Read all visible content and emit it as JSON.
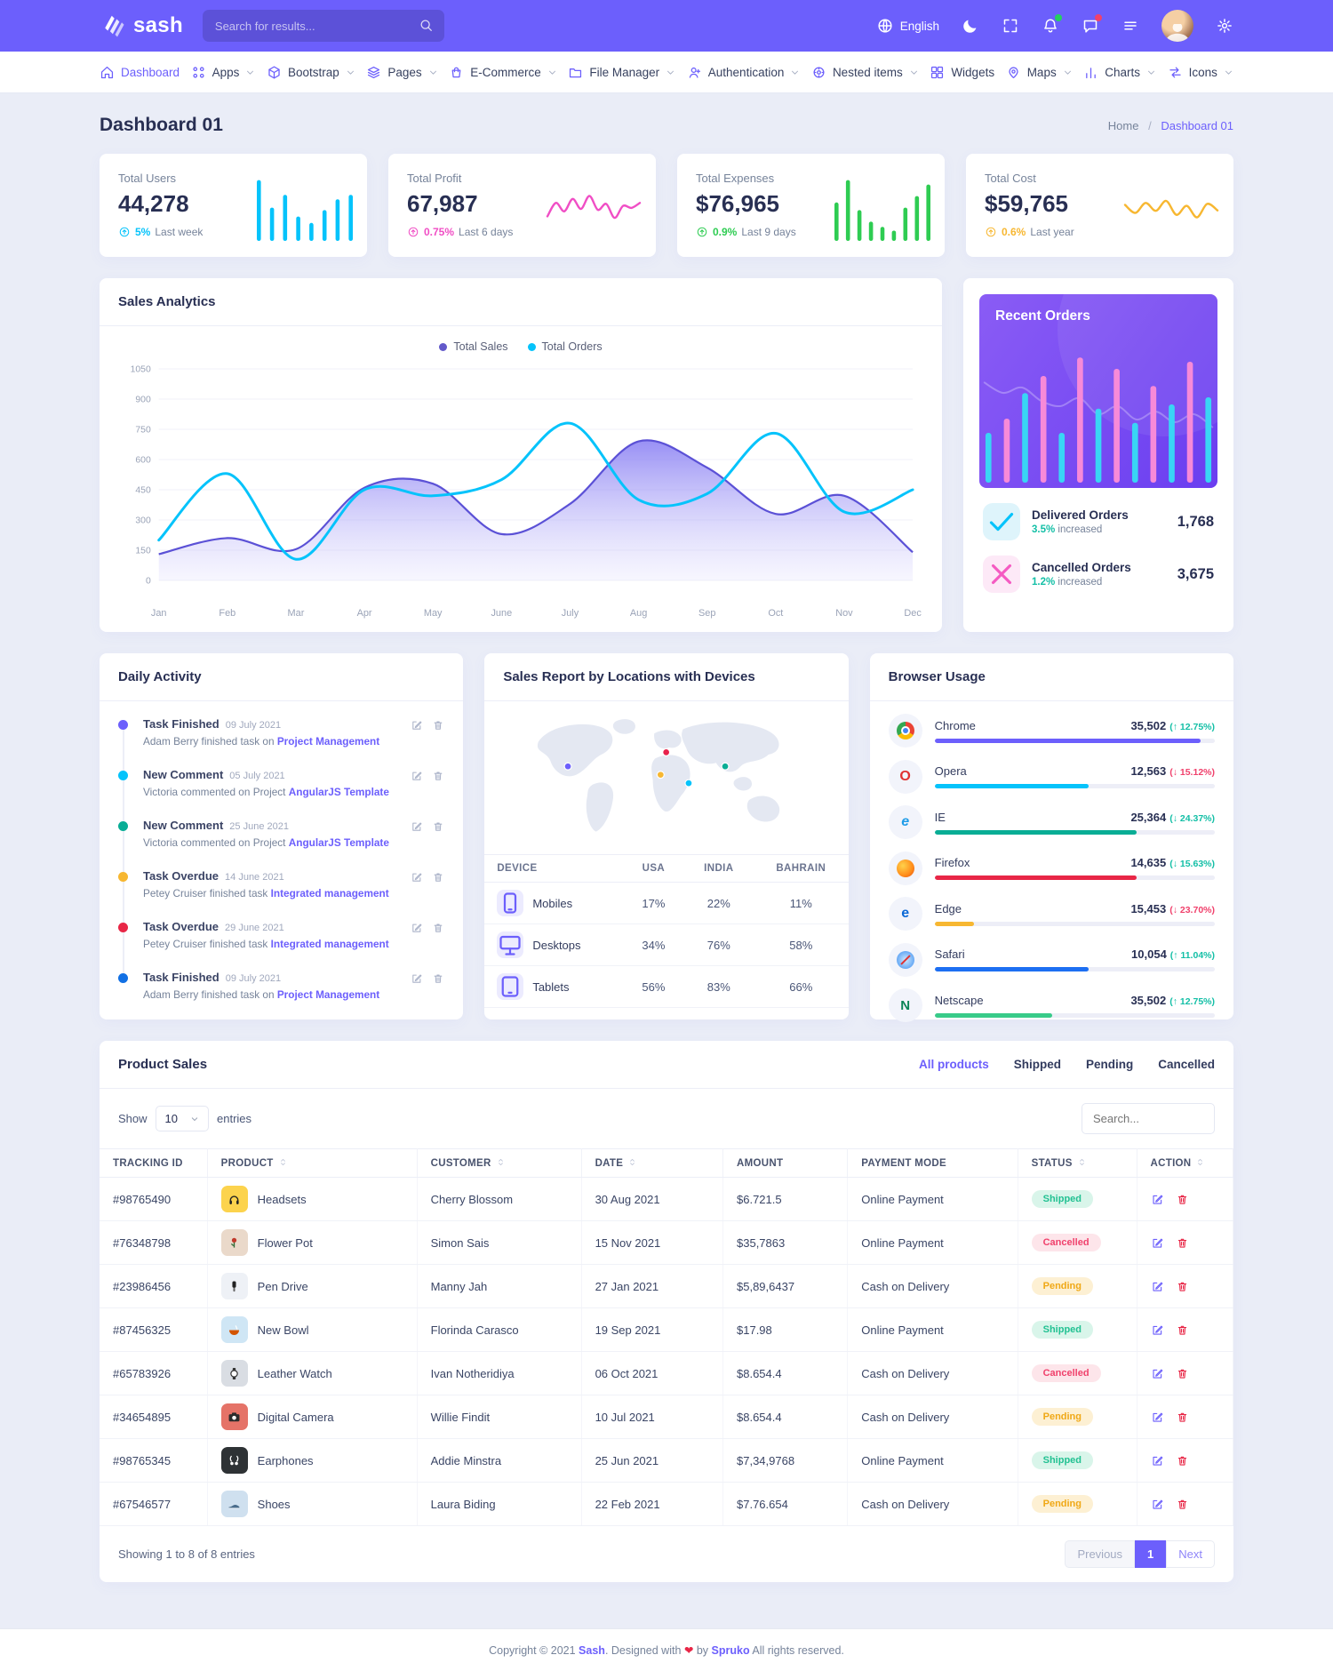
{
  "header": {
    "brand": "sash",
    "search": {
      "placeholder": "Search for results..."
    },
    "language": "English",
    "action_icons": [
      {
        "icon": "globe-icon",
        "label": "English"
      },
      {
        "icon": "moon-icon"
      },
      {
        "icon": "fullscreen-icon"
      },
      {
        "icon": "bell-icon",
        "badge": "#23d160"
      },
      {
        "icon": "chat-icon",
        "badge": "#f0416c"
      },
      {
        "icon": "menu-icon"
      },
      {
        "icon": "avatar"
      },
      {
        "icon": "gear-icon"
      }
    ]
  },
  "nav": {
    "items": [
      {
        "label": "Dashboard",
        "icon": "home-icon",
        "active": true,
        "caret": false
      },
      {
        "label": "Apps",
        "icon": "apps-icon",
        "caret": true
      },
      {
        "label": "Bootstrap",
        "icon": "bootstrap-icon",
        "caret": true
      },
      {
        "label": "Pages",
        "icon": "pages-icon",
        "caret": true
      },
      {
        "label": "E-Commerce",
        "icon": "ecommerce-icon",
        "caret": true
      },
      {
        "label": "File Manager",
        "icon": "folder-icon",
        "caret": true
      },
      {
        "label": "Authentication",
        "icon": "user-icon",
        "caret": true
      },
      {
        "label": "Nested items",
        "icon": "nested-icon",
        "caret": true
      },
      {
        "label": "Widgets",
        "icon": "widgets-icon",
        "caret": false
      },
      {
        "label": "Maps",
        "icon": "map-pin-icon",
        "caret": true
      },
      {
        "label": "Charts",
        "icon": "charts-icon",
        "caret": true
      },
      {
        "label": "Icons",
        "icon": "icons-icon",
        "caret": true
      }
    ]
  },
  "page": {
    "title": "Dashboard 01",
    "breadcrumb": {
      "home": "Home",
      "current": "Dashboard 01"
    }
  },
  "stats": [
    {
      "label": "Total Users",
      "value": "44,278",
      "change": "5%",
      "period": "Last week",
      "color": "#05c3fb"
    },
    {
      "label": "Total Profit",
      "value": "67,987",
      "change": "0.75%",
      "period": "Last 6 days",
      "color": "#f04ec5"
    },
    {
      "label": "Total Expenses",
      "value": "$76,965",
      "change": "0.9%",
      "period": "Last 9 days",
      "color": "#2ecc52"
    },
    {
      "label": "Total Cost",
      "value": "$59,765",
      "change": "0.6%",
      "period": "Last year",
      "color": "#f7b731"
    }
  ],
  "chart_data": [
    {
      "id": "sales-analytics",
      "type": "area",
      "title": "Sales Analytics",
      "categories": [
        "Jan",
        "Feb",
        "Mar",
        "Apr",
        "May",
        "June",
        "July",
        "Aug",
        "Sep",
        "Oct",
        "Nov",
        "Dec"
      ],
      "yticks": [
        0,
        150,
        300,
        450,
        600,
        750,
        900,
        1050
      ],
      "ylim": [
        0,
        1050
      ],
      "grid": true,
      "legend_position": "top",
      "series": [
        {
          "name": "Total Sales",
          "type": "area",
          "color": "#6259ca",
          "values": [
            130,
            210,
            155,
            460,
            480,
            230,
            380,
            690,
            560,
            330,
            420,
            140
          ]
        },
        {
          "name": "Total Orders",
          "type": "line",
          "color": "#05c3fb",
          "values": [
            200,
            530,
            105,
            450,
            420,
            500,
            780,
            400,
            430,
            730,
            340,
            450
          ]
        }
      ]
    },
    {
      "id": "recent-orders-mini",
      "type": "bar",
      "bar_colors": [
        "#39d5f5",
        "#f78ad8"
      ],
      "values": [
        35,
        45,
        63,
        75,
        35,
        88,
        52,
        80,
        42,
        68,
        55,
        85,
        60
      ],
      "overlay_line": [
        70,
        62,
        66,
        56,
        52,
        58,
        46,
        52,
        42,
        48,
        40,
        46,
        36
      ]
    },
    {
      "id": "stat-sparklines",
      "type": "sparklines",
      "items": [
        {
          "type": "bar",
          "color": "#05c3fb",
          "values": [
            95,
            52,
            72,
            38,
            28,
            48,
            65,
            72
          ]
        },
        {
          "type": "line",
          "color": "#f04ec5",
          "values": [
            35,
            62,
            45,
            70,
            50,
            76,
            48,
            60,
            32,
            56,
            52,
            62
          ]
        },
        {
          "type": "bar",
          "color": "#2ecc52",
          "values": [
            60,
            95,
            48,
            30,
            22,
            16,
            52,
            70,
            88
          ]
        },
        {
          "type": "line",
          "color": "#f7b731",
          "values": [
            58,
            42,
            62,
            46,
            66,
            38,
            56,
            33,
            60,
            47
          ]
        }
      ]
    }
  ],
  "recent_orders": {
    "title": "Recent Orders",
    "items": [
      {
        "label": "Delivered Orders",
        "change": "3.5%",
        "change_text": "increased",
        "value": "1,768",
        "icon": "check-icon",
        "icon_color": "#05c3fb",
        "icon_bg": "#def4fb",
        "change_color": "#13bfa6"
      },
      {
        "label": "Cancelled Orders",
        "change": "1.2%",
        "change_text": "increased",
        "value": "3,675",
        "icon": "x-icon",
        "icon_color": "#f55bc2",
        "icon_bg": "#fde9f7",
        "change_color": "#13bfa6"
      }
    ]
  },
  "daily_activity": {
    "title": "Daily Activity",
    "items": [
      {
        "dot": "#6c5ffc",
        "title": "Task Finished",
        "date": "09 July 2021",
        "text": "Adam Berry finished task on ",
        "link": "Project Management"
      },
      {
        "dot": "#05c3fb",
        "title": "New Comment",
        "date": "05 July 2021",
        "text": "Victoria commented on Project ",
        "link": "AngularJS Template"
      },
      {
        "dot": "#09ad95",
        "title": "New Comment",
        "date": "25 June 2021",
        "text": "Victoria commented on Project ",
        "link": "AngularJS Template"
      },
      {
        "dot": "#f7b731",
        "title": "Task Overdue",
        "date": "14 June 2021",
        "text": "Petey Cruiser finished task ",
        "link": "Integrated management"
      },
      {
        "dot": "#e82646",
        "title": "Task Overdue",
        "date": "29 June 2021",
        "text": "Petey Cruiser finished task ",
        "link": "Integrated management"
      },
      {
        "dot": "#1170e4",
        "title": "Task Finished",
        "date": "09 July 2021",
        "text": "Adam Berry finished task on ",
        "link": "Project Management"
      }
    ]
  },
  "sales_report": {
    "title": "Sales Report by Locations with Devices",
    "columns": [
      "DEVICE",
      "USA",
      "INDIA",
      "BAHRAIN"
    ],
    "rows": [
      {
        "device": "Mobiles",
        "icon": "mobile-icon",
        "usa": "17%",
        "india": "22%",
        "bahrain": "11%"
      },
      {
        "device": "Desktops",
        "icon": "desktop-icon",
        "usa": "34%",
        "india": "76%",
        "bahrain": "58%"
      },
      {
        "device": "Tablets",
        "icon": "tablet-icon",
        "usa": "56%",
        "india": "83%",
        "bahrain": "66%"
      }
    ],
    "map_markers": [
      {
        "color": "#6c5ffc",
        "x": 15,
        "y": 40
      },
      {
        "color": "#e8224c",
        "x": 50,
        "y": 30
      },
      {
        "color": "#f7b731",
        "x": 48,
        "y": 46
      },
      {
        "color": "#05c3fb",
        "x": 58,
        "y": 52
      },
      {
        "color": "#09ad95",
        "x": 71,
        "y": 40
      }
    ]
  },
  "browser_usage": {
    "title": "Browser Usage",
    "rows": [
      {
        "name": "Chrome",
        "value": "35,502",
        "dir": "up",
        "pct": "12.75%",
        "pct_color": "#13bfa6",
        "bar": 95,
        "color": "#6c5ffc"
      },
      {
        "name": "Opera",
        "value": "12,563",
        "dir": "down",
        "pct": "15.12%",
        "pct_color": "#f0416c",
        "bar": 55,
        "color": "#05c3fb"
      },
      {
        "name": "IE",
        "value": "25,364",
        "dir": "down",
        "pct": "24.37%",
        "pct_color": "#13bfa6",
        "bar": 72,
        "color": "#09ad95"
      },
      {
        "name": "Firefox",
        "value": "14,635",
        "dir": "down",
        "pct": "15.63%",
        "pct_color": "#13bfa6",
        "bar": 72,
        "color": "#e82646"
      },
      {
        "name": "Edge",
        "value": "15,453",
        "dir": "down",
        "pct": "23.70%",
        "pct_color": "#f0416c",
        "bar": 14,
        "color": "#f7b731"
      },
      {
        "name": "Safari",
        "value": "10,054",
        "dir": "up",
        "pct": "11.04%",
        "pct_color": "#13bfa6",
        "bar": 55,
        "color": "#1d6ff2"
      },
      {
        "name": "Netscape",
        "value": "35,502",
        "dir": "up",
        "pct": "12.75%",
        "pct_color": "#13bfa6",
        "bar": 42,
        "color": "#38cb89"
      }
    ]
  },
  "product_sales": {
    "title": "Product Sales",
    "tabs": [
      {
        "label": "All products",
        "active": true
      },
      {
        "label": "Shipped",
        "active": false
      },
      {
        "label": "Pending",
        "active": false
      },
      {
        "label": "Cancelled",
        "active": false
      }
    ],
    "show_label": "Show",
    "page_size": "10",
    "entries_label": "entries",
    "search_placeholder": "Search...",
    "columns": [
      {
        "label": "TRACKING ID",
        "sortable": false
      },
      {
        "label": "PRODUCT",
        "sortable": true
      },
      {
        "label": "CUSTOMER",
        "sortable": true
      },
      {
        "label": "DATE",
        "sortable": true
      },
      {
        "label": "AMOUNT",
        "sortable": false
      },
      {
        "label": "PAYMENT MODE",
        "sortable": false
      },
      {
        "label": "STATUS",
        "sortable": true
      },
      {
        "label": "ACTION",
        "sortable": true
      }
    ],
    "rows": [
      {
        "id": "#98765490",
        "product": "Headsets",
        "icon": "headsets",
        "icon_bg": "#fcd34d",
        "customer": "Cherry Blossom",
        "date": "30 Aug 2021",
        "amount": "$6.721.5",
        "payment": "Online Payment",
        "status": "Shipped"
      },
      {
        "id": "#76348798",
        "product": "Flower Pot",
        "icon": "flower",
        "icon_bg": "#ead9ca",
        "customer": "Simon Sais",
        "date": "15 Nov 2021",
        "amount": "$35,7863",
        "payment": "Online Payment",
        "status": "Cancelled"
      },
      {
        "id": "#23986456",
        "product": "Pen Drive",
        "icon": "pendrive",
        "icon_bg": "#eef1f6",
        "customer": "Manny Jah",
        "date": "27 Jan 2021",
        "amount": "$5,89,6437",
        "payment": "Cash on Delivery",
        "status": "Pending"
      },
      {
        "id": "#87456325",
        "product": "New Bowl",
        "icon": "bowl",
        "icon_bg": "#cfe6f5",
        "customer": "Florinda Carasco",
        "date": "19 Sep 2021",
        "amount": "$17.98",
        "payment": "Online Payment",
        "status": "Shipped"
      },
      {
        "id": "#65783926",
        "product": "Leather Watch",
        "icon": "watch",
        "icon_bg": "#d9dde3",
        "customer": "Ivan Notheridiya",
        "date": "06 Oct 2021",
        "amount": "$8.654.4",
        "payment": "Cash on Delivery",
        "status": "Cancelled"
      },
      {
        "id": "#34654895",
        "product": "Digital Camera",
        "icon": "camera",
        "icon_bg": "#e57368",
        "customer": "Willie Findit",
        "date": "10 Jul 2021",
        "amount": "$8.654.4",
        "payment": "Cash on Delivery",
        "status": "Pending"
      },
      {
        "id": "#98765345",
        "product": "Earphones",
        "icon": "earphones",
        "icon_bg": "#2e3235",
        "customer": "Addie Minstra",
        "date": "25 Jun 2021",
        "amount": "$7,34,9768",
        "payment": "Online Payment",
        "status": "Shipped"
      },
      {
        "id": "#67546577",
        "product": "Shoes",
        "icon": "shoes",
        "icon_bg": "#cfe0ef",
        "customer": "Laura Biding",
        "date": "22 Feb 2021",
        "amount": "$7.76.654",
        "payment": "Cash on Delivery",
        "status": "Pending"
      }
    ],
    "footer": {
      "showing": "Showing 1 to 8 of 8 entries",
      "prev": "Previous",
      "page": "1",
      "next": "Next"
    }
  },
  "footer": {
    "prefix": "Copyright © 2021 ",
    "brand": "Sash",
    "mid": ". Designed with ",
    "heart": "❤",
    "by": " by ",
    "agency": "Spruko",
    "suffix": " All rights reserved."
  }
}
